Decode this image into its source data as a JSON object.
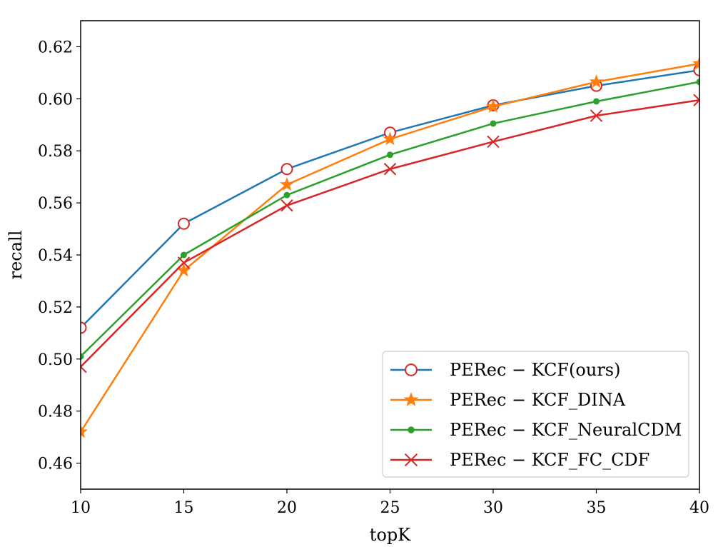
{
  "chart_data": {
    "type": "line",
    "title": "",
    "xlabel": "topK",
    "ylabel": "recall",
    "x": [
      10,
      15,
      20,
      25,
      30,
      35,
      40
    ],
    "xlim": [
      10,
      40
    ],
    "ylim": [
      0.45,
      0.63
    ],
    "xticks": [
      "10",
      "15",
      "20",
      "25",
      "30",
      "35",
      "40"
    ],
    "yticks": [
      "0.46",
      "0.48",
      "0.50",
      "0.52",
      "0.54",
      "0.56",
      "0.58",
      "0.60",
      "0.62"
    ],
    "grid": false,
    "legend_position": "lower-right",
    "series": [
      {
        "name": "PERec − KCF(ours)",
        "color": "#1f77b4",
        "marker": "open-circle",
        "marker_color": "#d62728",
        "values": [
          0.512,
          0.552,
          0.573,
          0.587,
          0.5975,
          0.605,
          0.611
        ]
      },
      {
        "name": "PERec − KCF_DINA",
        "color": "#ff7f0e",
        "marker": "star",
        "marker_color": "#ff7f0e",
        "values": [
          0.472,
          0.534,
          0.567,
          0.5845,
          0.597,
          0.6065,
          0.6135
        ]
      },
      {
        "name": "PERec − KCF_NeuralCDM",
        "color": "#2ca02c",
        "marker": "dot",
        "marker_color": "#2ca02c",
        "values": [
          0.501,
          0.54,
          0.563,
          0.5785,
          0.5905,
          0.599,
          0.6065
        ]
      },
      {
        "name": "PERec − KCF_FC_CDF",
        "color": "#d62728",
        "marker": "x",
        "marker_color": "#d62728",
        "values": [
          0.497,
          0.537,
          0.559,
          0.573,
          0.5835,
          0.5935,
          0.5995
        ]
      }
    ]
  }
}
